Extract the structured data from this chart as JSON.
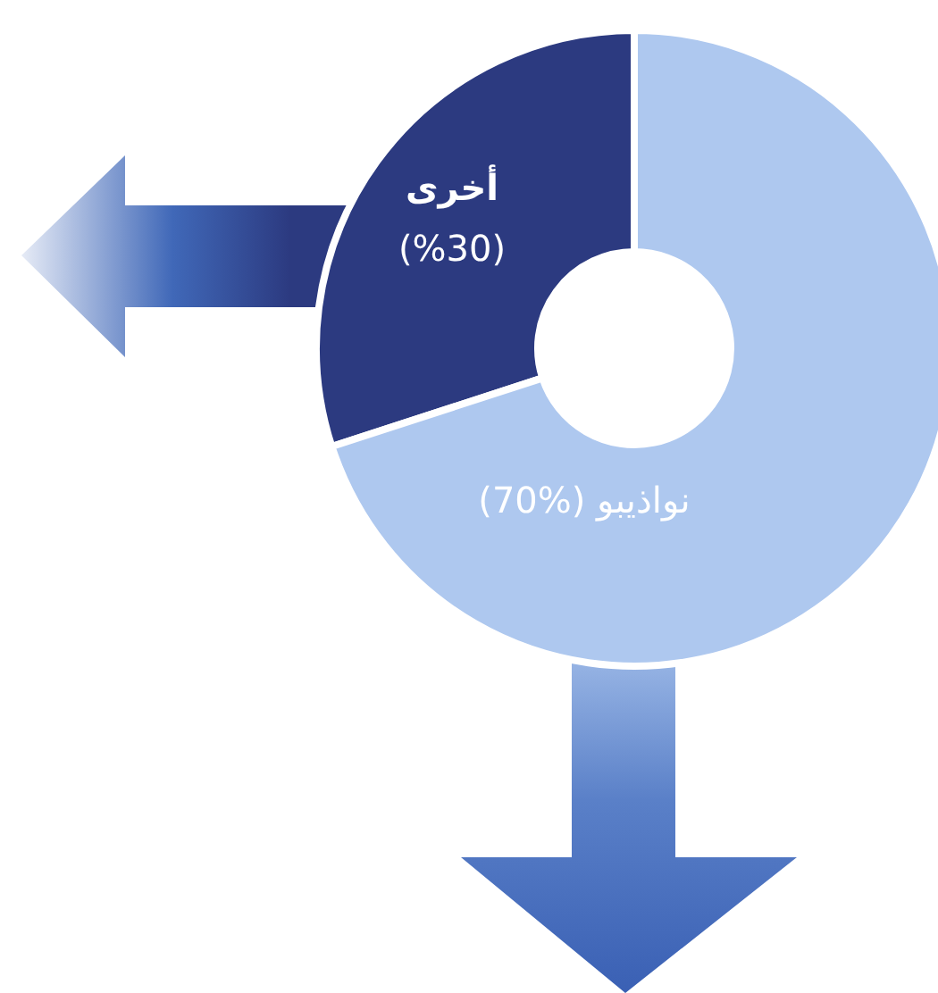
{
  "chart_data": {
    "type": "donut",
    "categories": [
      "أخرى",
      "نواذيبو"
    ],
    "values": [
      30,
      70
    ],
    "colors": [
      "#2c3a80",
      "#aec8ef"
    ],
    "value_labels": [
      "(%30)",
      "(%70)"
    ],
    "legend": false
  }
}
